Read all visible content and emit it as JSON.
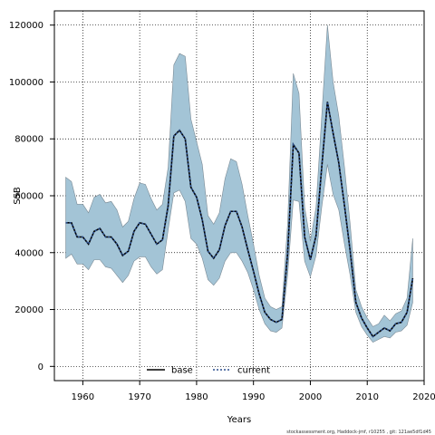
{
  "chart_data": {
    "type": "line",
    "xlabel": "Years",
    "ylabel": "SSB",
    "xlim": [
      1955,
      2020
    ],
    "ylim": [
      -5000,
      125000
    ],
    "x_ticks": [
      1960,
      1970,
      1980,
      1990,
      2000,
      2010,
      2020
    ],
    "y_ticks": [
      0,
      20000,
      40000,
      60000,
      80000,
      100000,
      120000
    ],
    "grid": true,
    "legend_position": "bottom-center",
    "colors": {
      "band_fill": "#a3c4d6",
      "band_stroke": "#7a8a95",
      "base": "#000000",
      "current": "#2b4f8e"
    },
    "x": [
      1957,
      1958,
      1959,
      1960,
      1961,
      1962,
      1963,
      1964,
      1965,
      1966,
      1967,
      1968,
      1969,
      1970,
      1971,
      1972,
      1973,
      1974,
      1975,
      1976,
      1977,
      1978,
      1979,
      1980,
      1981,
      1982,
      1983,
      1984,
      1985,
      1986,
      1987,
      1988,
      1989,
      1990,
      1991,
      1992,
      1993,
      1994,
      1995,
      1996,
      1997,
      1998,
      1999,
      2000,
      2001,
      2002,
      2003,
      2004,
      2005,
      2006,
      2007,
      2008,
      2009,
      2010,
      2011,
      2012,
      2013,
      2014,
      2015,
      2016,
      2017,
      2018
    ],
    "upper": [
      66500,
      65000,
      57000,
      57000,
      54000,
      59500,
      60500,
      57500,
      58000,
      55000,
      49000,
      51000,
      59000,
      64500,
      64000,
      59000,
      55000,
      57000,
      70000,
      106000,
      110000,
      109000,
      87000,
      79000,
      71000,
      53000,
      50000,
      54000,
      66000,
      73000,
      72000,
      64000,
      53000,
      43000,
      32000,
      24000,
      21000,
      20000,
      21000,
      50000,
      103000,
      96000,
      56000,
      44000,
      56000,
      88000,
      120000,
      100000,
      88000,
      70000,
      50000,
      27000,
      21000,
      17000,
      14000,
      15000,
      18000,
      16000,
      18500,
      19500,
      24000,
      45000
    ],
    "lower": [
      38000,
      39500,
      36000,
      36000,
      34000,
      37500,
      37500,
      35000,
      34500,
      32000,
      29500,
      32000,
      37000,
      38500,
      38500,
      35000,
      32500,
      34000,
      48000,
      61000,
      62000,
      58000,
      45000,
      43000,
      38000,
      30500,
      28500,
      31000,
      37000,
      40000,
      40000,
      37000,
      33000,
      27000,
      20000,
      15000,
      12500,
      12000,
      13500,
      32000,
      58500,
      58000,
      37000,
      31500,
      39000,
      56000,
      71000,
      60500,
      55000,
      43000,
      32000,
      19000,
      14000,
      11000,
      8500,
      9500,
      10500,
      10000,
      12000,
      12500,
      14500,
      22500
    ],
    "series": [
      {
        "name": "base",
        "values": [
          50500,
          50500,
          45500,
          45500,
          43000,
          47500,
          48500,
          45500,
          45500,
          43000,
          39000,
          40500,
          47500,
          50500,
          50000,
          46500,
          43000,
          44500,
          56500,
          81000,
          83000,
          80000,
          63000,
          59500,
          51500,
          40500,
          38000,
          41000,
          49500,
          54500,
          54500,
          49000,
          41000,
          33500,
          25500,
          19000,
          16500,
          15500,
          16500,
          39500,
          78000,
          75000,
          45500,
          37500,
          46000,
          70000,
          93000,
          82000,
          71500,
          56500,
          40500,
          22500,
          17000,
          13500,
          10500,
          12000,
          13500,
          12500,
          15000,
          15500,
          19000,
          31000
        ]
      },
      {
        "name": "current",
        "values": [
          50500,
          50500,
          45500,
          45500,
          43000,
          47500,
          48500,
          45500,
          45500,
          43000,
          39000,
          40500,
          47500,
          50500,
          50000,
          46500,
          43000,
          44500,
          56500,
          81000,
          83000,
          80000,
          63000,
          59500,
          51500,
          40500,
          38000,
          41000,
          49500,
          54500,
          54500,
          49000,
          41000,
          33500,
          25500,
          19000,
          16500,
          15500,
          16500,
          39500,
          78000,
          75000,
          45500,
          37500,
          46000,
          70000,
          93000,
          82000,
          71500,
          56500,
          40500,
          22500,
          17000,
          13500,
          10500,
          12000,
          13500,
          12500,
          15000,
          15500,
          19000,
          31000
        ]
      }
    ]
  },
  "footer": {
    "credit": "stockassessment.org, Haddock-jmf, r10255 , git: 121ae5df1d45"
  }
}
